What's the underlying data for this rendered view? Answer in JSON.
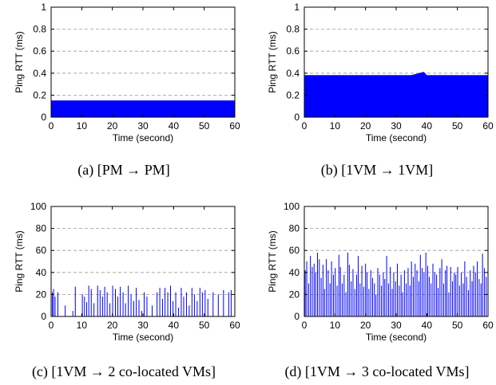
{
  "chart_data": [
    {
      "type": "area",
      "caption": "(a)  [PM → PM]",
      "xlabel": "Time (second)",
      "ylabel": "Ping RTT (ms)",
      "xlim": [
        0,
        60
      ],
      "ylim": [
        0,
        1
      ],
      "xticks": [
        "0",
        "10",
        "20",
        "30",
        "40",
        "50",
        "60"
      ],
      "yticks": [
        "0",
        "0.2",
        "0.4",
        "0.6",
        "0.8",
        "1"
      ],
      "grid": "horizontal dashed",
      "color": "#0000ff",
      "series": [
        {
          "x": [
            0,
            5,
            10,
            15,
            20,
            25,
            30,
            35,
            40,
            45,
            50,
            55,
            60
          ],
          "values": [
            0.15,
            0.15,
            0.15,
            0.15,
            0.15,
            0.15,
            0.15,
            0.15,
            0.15,
            0.15,
            0.15,
            0.15,
            0.15
          ]
        }
      ]
    },
    {
      "type": "area",
      "caption": "(b)  [1VM → 1VM]",
      "xlabel": "Time (second)",
      "ylabel": "Ping RTT (ms)",
      "xlim": [
        0,
        60
      ],
      "ylim": [
        0,
        1
      ],
      "xticks": [
        "0",
        "10",
        "20",
        "30",
        "40",
        "50",
        "60"
      ],
      "yticks": [
        "0",
        "0.2",
        "0.4",
        "0.6",
        "0.8",
        "1"
      ],
      "grid": "horizontal dashed",
      "color": "#0000ff",
      "series": [
        {
          "x": [
            0,
            5,
            10,
            15,
            20,
            25,
            30,
            35,
            39,
            40,
            45,
            50,
            55,
            60
          ],
          "values": [
            0.38,
            0.38,
            0.38,
            0.38,
            0.38,
            0.38,
            0.38,
            0.38,
            0.41,
            0.38,
            0.38,
            0.38,
            0.38,
            0.38
          ]
        }
      ]
    },
    {
      "type": "bar",
      "caption": "(c)  [1VM → 2 co-located VMs]",
      "xlabel": "Time (second)",
      "ylabel": "Ping RTT (ms)",
      "xlim": [
        0,
        60
      ],
      "ylim": [
        0,
        100
      ],
      "xticks": [
        "0",
        "10",
        "20",
        "30",
        "40",
        "50",
        "60"
      ],
      "yticks": [
        "0",
        "20",
        "40",
        "60",
        "80",
        "100"
      ],
      "grid": "horizontal dashed",
      "color": "#0000ff",
      "series": [
        {
          "x": [
            0.4,
            0.8,
            1.3,
            2.2,
            4.6,
            7.1,
            7.9,
            10.2,
            10.9,
            11.6,
            12.3,
            13.1,
            14.0,
            15.2,
            16.0,
            16.8,
            17.5,
            18.3,
            19.2,
            20.1,
            21.0,
            21.8,
            22.6,
            23.5,
            24.3,
            25.2,
            26.1,
            27.0,
            27.8,
            28.7,
            29.6,
            30.4,
            31.3,
            33.0,
            34.6,
            35.5,
            36.4,
            37.2,
            38.1,
            39.0,
            39.8,
            40.7,
            41.6,
            42.5,
            43.3,
            44.2,
            45.1,
            46.0,
            46.8,
            47.7,
            48.6,
            49.4,
            50.3,
            51.2,
            52.9,
            54.6,
            56.3,
            58.0,
            58.8
          ],
          "values": [
            22,
            25,
            18,
            22,
            10,
            5,
            27,
            20,
            18,
            13,
            28,
            25,
            12,
            28,
            24,
            18,
            27,
            22,
            12,
            28,
            25,
            18,
            27,
            22,
            12,
            28,
            20,
            14,
            26,
            15,
            5,
            22,
            18,
            10,
            22,
            26,
            16,
            26,
            22,
            28,
            14,
            22,
            8,
            26,
            18,
            22,
            10,
            26,
            20,
            14,
            26,
            22,
            24,
            16,
            22,
            20,
            24,
            22,
            24
          ]
        }
      ]
    },
    {
      "type": "bar",
      "caption": "(d)  [1VM → 3 co-located VMs]",
      "xlabel": "Time (second)",
      "ylabel": "Ping RTT (ms)",
      "xlim": [
        0,
        60
      ],
      "ylim": [
        0,
        100
      ],
      "xticks": [
        "0",
        "10",
        "20",
        "30",
        "40",
        "50",
        "60"
      ],
      "yticks": [
        "0",
        "20",
        "40",
        "60",
        "80",
        "100"
      ],
      "grid": "horizontal dashed",
      "color": "#0000ff",
      "series": [
        {
          "x": [
            0.3,
            0.8,
            1.4,
            2.0,
            2.6,
            3.2,
            3.7,
            4.3,
            4.9,
            5.5,
            6.1,
            6.6,
            7.2,
            7.8,
            8.4,
            8.9,
            9.5,
            10.1,
            10.7,
            11.3,
            11.8,
            12.4,
            13.0,
            13.6,
            14.2,
            14.7,
            15.3,
            15.9,
            16.5,
            17.1,
            17.6,
            18.2,
            18.8,
            19.4,
            20.0,
            20.5,
            21.1,
            21.7,
            22.3,
            22.9,
            23.4,
            24.0,
            24.6,
            25.2,
            25.8,
            26.3,
            26.9,
            27.5,
            28.1,
            28.7,
            29.2,
            29.8,
            30.4,
            31.0,
            31.6,
            32.1,
            32.7,
            33.3,
            33.9,
            34.5,
            35.0,
            35.6,
            36.2,
            36.8,
            37.4,
            37.9,
            38.5,
            39.1,
            39.7,
            40.3,
            40.8,
            41.4,
            42.0,
            42.6,
            43.2,
            43.7,
            44.3,
            44.9,
            45.5,
            46.1,
            46.6,
            47.2,
            47.8,
            48.4,
            49.0,
            49.5,
            50.1,
            50.7,
            51.3,
            51.9,
            52.4,
            53.0,
            53.6,
            54.2,
            54.8,
            55.3,
            55.9,
            56.5,
            57.1,
            57.7,
            58.2,
            58.8,
            59.4
          ],
          "values": [
            42,
            50,
            30,
            55,
            45,
            48,
            40,
            58,
            52,
            35,
            47,
            25,
            52,
            42,
            30,
            50,
            38,
            44,
            28,
            56,
            45,
            30,
            38,
            22,
            58,
            47,
            32,
            43,
            25,
            38,
            55,
            30,
            46,
            27,
            48,
            40,
            25,
            42,
            35,
            30,
            20,
            44,
            38,
            28,
            40,
            34,
            55,
            30,
            45,
            25,
            40,
            32,
            48,
            28,
            38,
            22,
            42,
            30,
            44,
            28,
            50,
            36,
            48,
            42,
            32,
            56,
            44,
            40,
            58,
            46,
            36,
            30,
            48,
            40,
            38,
            26,
            44,
            52,
            30,
            42,
            46,
            22,
            45,
            32,
            40,
            38,
            45,
            28,
            40,
            30,
            50,
            36,
            24,
            42,
            32,
            46,
            40,
            50,
            34,
            30,
            57,
            44,
            36
          ]
        }
      ]
    }
  ]
}
